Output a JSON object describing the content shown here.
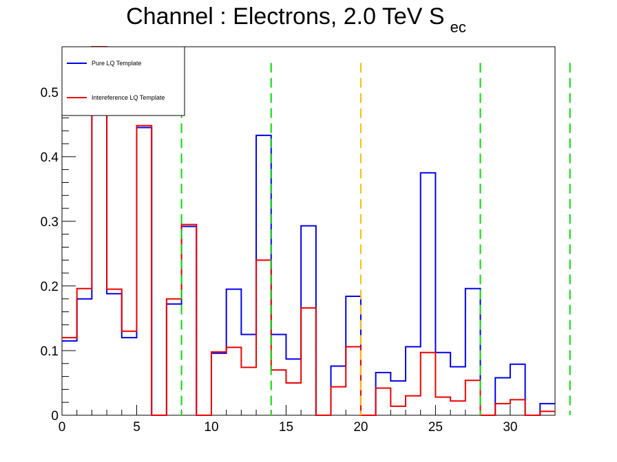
{
  "chart_data": {
    "type": "step-histogram",
    "title": "Channel : Electrons, 2.0 TeV S",
    "title_subscript": "ec",
    "xlabel": "",
    "ylabel": "",
    "xlim": [
      0,
      33
    ],
    "ylim": [
      0,
      0.57
    ],
    "x_ticks": [
      0,
      5,
      10,
      15,
      20,
      25,
      30
    ],
    "y_ticks": [
      0,
      0.1,
      0.2,
      0.3,
      0.4,
      0.5
    ],
    "y_tick_labels": [
      "0",
      "0.1",
      "0.2",
      "0.3",
      "0.4",
      "0.5"
    ],
    "bin_edges_start": 0,
    "bin_width": 1,
    "series": [
      {
        "name": "Pure LQ Template",
        "color": "#0000ee",
        "values": [
          0.115,
          0.18,
          0.57,
          0.188,
          0.12,
          0.445,
          0,
          0.172,
          0.292,
          0,
          0.096,
          0.195,
          0.125,
          0.433,
          0.125,
          0.087,
          0.293,
          0,
          0.076,
          0.184,
          0,
          0.066,
          0.053,
          0.106,
          0.375,
          0.097,
          0.075,
          0.196,
          0,
          0.058,
          0.079,
          0,
          0.018
        ]
      },
      {
        "name": "Intereference LQ Template",
        "color": "#ee0000",
        "values": [
          0.12,
          0.196,
          0.57,
          0.195,
          0.13,
          0.448,
          0,
          0.18,
          0.295,
          0,
          0.098,
          0.105,
          0.074,
          0.24,
          0.07,
          0.05,
          0.166,
          0,
          0.044,
          0.106,
          0,
          0.042,
          0.014,
          0.03,
          0.097,
          0.028,
          0.022,
          0.054,
          0,
          0.018,
          0.024,
          0,
          0.006
        ]
      }
    ],
    "vertical_markers": [
      {
        "x": 8,
        "color": "#00dd00"
      },
      {
        "x": 14,
        "color": "#00dd00"
      },
      {
        "x": 20,
        "color": "#ffbb00"
      },
      {
        "x": 28,
        "color": "#00dd00"
      },
      {
        "x": 34,
        "color": "#00dd00"
      }
    ],
    "legend": {
      "position": "top-left",
      "entries": [
        "Pure LQ Template",
        "Intereference LQ Template"
      ]
    },
    "grid": false
  }
}
